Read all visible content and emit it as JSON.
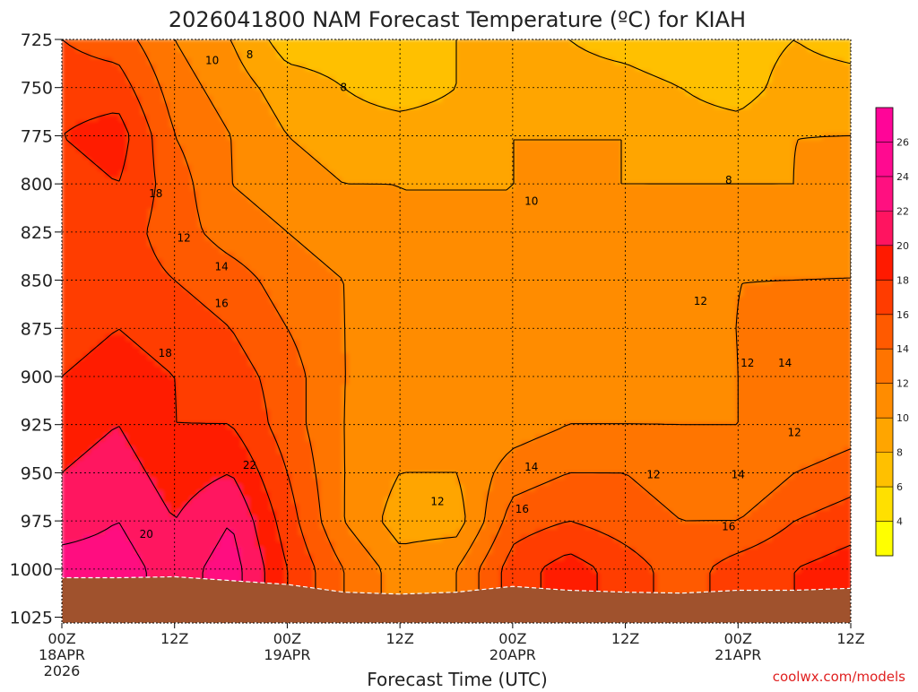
{
  "chart_data": {
    "type": "heatmap",
    "title": "2026041800 NAM Forecast Temperature (ºC) for KIAH",
    "xlabel": "Forecast Time (UTC)",
    "ylabel": "",
    "credit": "coolwx.com/models",
    "x_ticks": [
      {
        "hour": 0,
        "label": "00Z",
        "sub": [
          "18APR",
          "2026"
        ]
      },
      {
        "hour": 12,
        "label": "12Z",
        "sub": []
      },
      {
        "hour": 24,
        "label": "00Z",
        "sub": [
          "19APR"
        ]
      },
      {
        "hour": 36,
        "label": "12Z",
        "sub": []
      },
      {
        "hour": 48,
        "label": "00Z",
        "sub": [
          "20APR"
        ]
      },
      {
        "hour": 60,
        "label": "12Z",
        "sub": []
      },
      {
        "hour": 72,
        "label": "00Z",
        "sub": [
          "21APR"
        ]
      },
      {
        "hour": 84,
        "label": "12Z",
        "sub": []
      }
    ],
    "xlim_hours": [
      0,
      84
    ],
    "y_ticks": [
      "725",
      "750",
      "775",
      "800",
      "825",
      "850",
      "875",
      "900",
      "925",
      "950",
      "975",
      "1000",
      "1025"
    ],
    "ylim_hpa": [
      725,
      1028
    ],
    "grid": true,
    "colorbar": {
      "labels": [
        4,
        6,
        8,
        10,
        12,
        14,
        16,
        18,
        20,
        22,
        24,
        26
      ],
      "colors": [
        "#ffff00",
        "#ffe000",
        "#ffc000",
        "#ffa500",
        "#ff8c00",
        "#ff7400",
        "#ff5a00",
        "#ff3c00",
        "#ff1a00",
        "#ff1460",
        "#ff1080",
        "#ff0a90",
        "#ff0598"
      ]
    },
    "hours": [
      0,
      6,
      12,
      18,
      24,
      30,
      36,
      42,
      48,
      54,
      60,
      66,
      72,
      78,
      84
    ],
    "pressure_levels": [
      725,
      750,
      775,
      800,
      825,
      850,
      875,
      900,
      925,
      950,
      975,
      1000
    ],
    "temperatures_c": [
      [
        16,
        15,
        12,
        10,
        7,
        7,
        7,
        8,
        9,
        8,
        7,
        6,
        7,
        8,
        7
      ],
      [
        17,
        17,
        13,
        11,
        9,
        8,
        7,
        8,
        9,
        9,
        9,
        8,
        7,
        9,
        9
      ],
      [
        18,
        19,
        14,
        12,
        10,
        9,
        9,
        9,
        10,
        10,
        10,
        9,
        9,
        10,
        10
      ],
      [
        17,
        18,
        15,
        12,
        11,
        10,
        10,
        10,
        10,
        10,
        10,
        10,
        10,
        10,
        11
      ],
      [
        16,
        17,
        15,
        13,
        12,
        11,
        10,
        10,
        10,
        10,
        11,
        11,
        11,
        11,
        12
      ],
      [
        16,
        17,
        16,
        15,
        13,
        12,
        11,
        10,
        10,
        11,
        11,
        11,
        12,
        12,
        12
      ],
      [
        17,
        18,
        17,
        16,
        14,
        12,
        11,
        10,
        10,
        11,
        11,
        12,
        12,
        13,
        14
      ],
      [
        18,
        19,
        18,
        17,
        15,
        12,
        11,
        10,
        10,
        11,
        11,
        11,
        12,
        13,
        13
      ],
      [
        19,
        20,
        18,
        18,
        15,
        12,
        10,
        10,
        11,
        12,
        12,
        12,
        12,
        12,
        13
      ],
      [
        20,
        21,
        19,
        20,
        16,
        12,
        10,
        10,
        13,
        14,
        14,
        13,
        12,
        14,
        15
      ],
      [
        21,
        22,
        20,
        22,
        17,
        12,
        9,
        9,
        15,
        16,
        15,
        14,
        14,
        16,
        17
      ],
      [
        23,
        23,
        21,
        23,
        18,
        14,
        11,
        12,
        17,
        19,
        17,
        15,
        17,
        18,
        19
      ]
    ],
    "surface_pressure_hpa": [
      1004.5,
      1004.5,
      1004,
      1006,
      1008,
      1012,
      1013,
      1012,
      1009,
      1011,
      1012,
      1012.5,
      1011,
      1011,
      1010
    ],
    "contour_labels": [
      {
        "text": "8",
        "hour": 20,
        "p": 733
      },
      {
        "text": "8",
        "hour": 30,
        "p": 750
      },
      {
        "text": "8",
        "hour": 71,
        "p": 798
      },
      {
        "text": "10",
        "hour": 16,
        "p": 736
      },
      {
        "text": "10",
        "hour": 50,
        "p": 809
      },
      {
        "text": "12",
        "hour": 13,
        "p": 828
      },
      {
        "text": "12",
        "hour": 40,
        "p": 965
      },
      {
        "text": "12",
        "hour": 68,
        "p": 861
      },
      {
        "text": "12",
        "hour": 73,
        "p": 893
      },
      {
        "text": "12",
        "hour": 63,
        "p": 951
      },
      {
        "text": "12",
        "hour": 78,
        "p": 929
      },
      {
        "text": "14",
        "hour": 17,
        "p": 843
      },
      {
        "text": "14",
        "hour": 50,
        "p": 947
      },
      {
        "text": "14",
        "hour": 77,
        "p": 893
      },
      {
        "text": "14",
        "hour": 72,
        "p": 951
      },
      {
        "text": "16",
        "hour": 17,
        "p": 862
      },
      {
        "text": "16",
        "hour": 49,
        "p": 969
      },
      {
        "text": "16",
        "hour": 71,
        "p": 978
      },
      {
        "text": "18",
        "hour": 10,
        "p": 805
      },
      {
        "text": "18",
        "hour": 11,
        "p": 888
      },
      {
        "text": "20",
        "hour": 9,
        "p": 982
      },
      {
        "text": "22",
        "hour": 20,
        "p": 946
      }
    ]
  }
}
